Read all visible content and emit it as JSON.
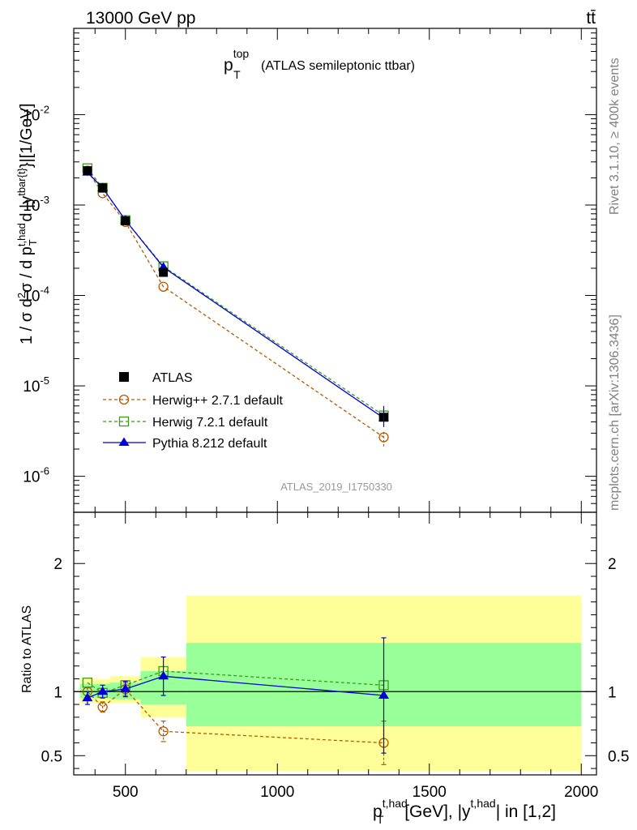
{
  "header": {
    "energy": "13000 GeV pp",
    "process": "tt̄"
  },
  "side_labels": {
    "rivet": "Rivet 3.1.10, ≥ 400k events",
    "mcplots": "mcplots.cern.ch [arXiv:1306.3436]"
  },
  "colors": {
    "data": "#000000",
    "herwigpp": "#b35a00",
    "herwig7": "#3b9a1a",
    "pythia": "#0000d8",
    "band_outer": "#ffff99",
    "band_inner": "#99ff99"
  },
  "chart_data": [
    {
      "type": "scatter",
      "panel": "main",
      "title_main": "p",
      "title_sup": "top",
      "title_sub": "T",
      "title_rest": "(ATLAS semileptonic ttbar)",
      "ylabel": "1 / σ d²σ / d p_T^{t,had} d |y^{tbar{t}}|[1/GeV]",
      "yscale": "log",
      "ylim": [
        4e-07,
        0.09
      ],
      "xlim": [
        330,
        2050
      ],
      "analysis": "ATLAS_2019_I1750330",
      "y_ticks": [
        {
          "value": 0.01,
          "base": "10",
          "exp": "-2"
        },
        {
          "value": 0.001,
          "base": "10",
          "exp": "-3"
        },
        {
          "value": 0.0001,
          "base": "10",
          "exp": "-4"
        },
        {
          "value": 1e-05,
          "base": "10",
          "exp": "-5"
        },
        {
          "value": 1e-06,
          "base": "10",
          "exp": "-6"
        }
      ],
      "bins": [
        [
          350,
          400
        ],
        [
          400,
          450
        ],
        [
          450,
          550
        ],
        [
          550,
          700
        ],
        [
          700,
          2000
        ]
      ],
      "series": [
        {
          "name": "ATLAS",
          "key": "data",
          "x": [
            375,
            425,
            500,
            625,
            1350
          ],
          "y": [
            0.0024,
            0.00155,
            0.00067,
            0.00018,
            4.5e-06
          ]
        },
        {
          "name": "Herwig++ 2.7.1 default",
          "key": "herwigpp",
          "x": [
            375,
            425,
            500,
            625,
            1350
          ],
          "y": [
            0.0024,
            0.00135,
            0.00065,
            0.000125,
            2.7e-06
          ]
        },
        {
          "name": "Herwig 7.2.1 default",
          "key": "herwig7",
          "x": [
            375,
            425,
            500,
            625,
            1350
          ],
          "y": [
            0.00255,
            0.00155,
            0.00068,
            0.00021,
            4.7e-06
          ]
        },
        {
          "name": "Pythia 8.212 default",
          "key": "pythia",
          "x": [
            375,
            425,
            500,
            625,
            1350
          ],
          "y": [
            0.0023,
            0.00155,
            0.00068,
            0.000205,
            4.4e-06
          ]
        }
      ]
    },
    {
      "type": "scatter",
      "panel": "ratio",
      "ylabel": "Ratio to ATLAS",
      "ylim": [
        0.35,
        2.4
      ],
      "xlabel_main": "p",
      "xlabel_sup": "t,had",
      "xlabel_sub": "T",
      "xlabel_mid": " [GeV], |y",
      "xlabel_sup2": "t,had",
      "xlabel_end": "| in [1,2]",
      "x_ticks": [
        500,
        1000,
        1500,
        2000
      ],
      "y_ticks": [
        0.5,
        1,
        2
      ],
      "y_tick_labels": [
        "0.5",
        "1",
        "2"
      ],
      "bands": [
        {
          "x": [
            350,
            400
          ],
          "outer": [
            0.91,
            1.1
          ],
          "inner": [
            0.95,
            1.06
          ]
        },
        {
          "x": [
            400,
            450
          ],
          "outer": [
            0.91,
            1.1
          ],
          "inner": [
            0.95,
            1.06
          ]
        },
        {
          "x": [
            450,
            550
          ],
          "outer": [
            0.91,
            1.12
          ],
          "inner": [
            0.94,
            1.07
          ]
        },
        {
          "x": [
            550,
            700
          ],
          "outer": [
            0.8,
            1.27
          ],
          "inner": [
            0.9,
            1.16
          ]
        },
        {
          "x": [
            700,
            2000
          ],
          "outer": [
            0.38,
            1.75
          ],
          "inner": [
            0.73,
            1.38
          ]
        }
      ],
      "series": [
        {
          "name": "Herwig++ 2.7.1 default",
          "key": "herwigpp",
          "x": [
            375,
            425,
            500,
            625,
            1350
          ],
          "y": [
            1.0,
            0.88,
            1.02,
            0.69,
            0.6
          ],
          "err": [
            0.03,
            0.04,
            0.05,
            0.08,
            0.17
          ]
        },
        {
          "name": "Herwig 7.2.1 default",
          "key": "herwig7",
          "x": [
            375,
            425,
            500,
            625,
            1350
          ],
          "y": [
            1.07,
            0.99,
            1.05,
            1.16,
            1.05
          ],
          "err": [
            0,
            0,
            0,
            0,
            0
          ]
        },
        {
          "name": "Pythia 8.212 default",
          "key": "pythia",
          "x": [
            375,
            425,
            500,
            625,
            1350
          ],
          "y": [
            0.95,
            1.0,
            1.02,
            1.12,
            0.97
          ],
          "err": [
            0.05,
            0.05,
            0.06,
            0.15,
            0.45
          ]
        }
      ]
    }
  ]
}
